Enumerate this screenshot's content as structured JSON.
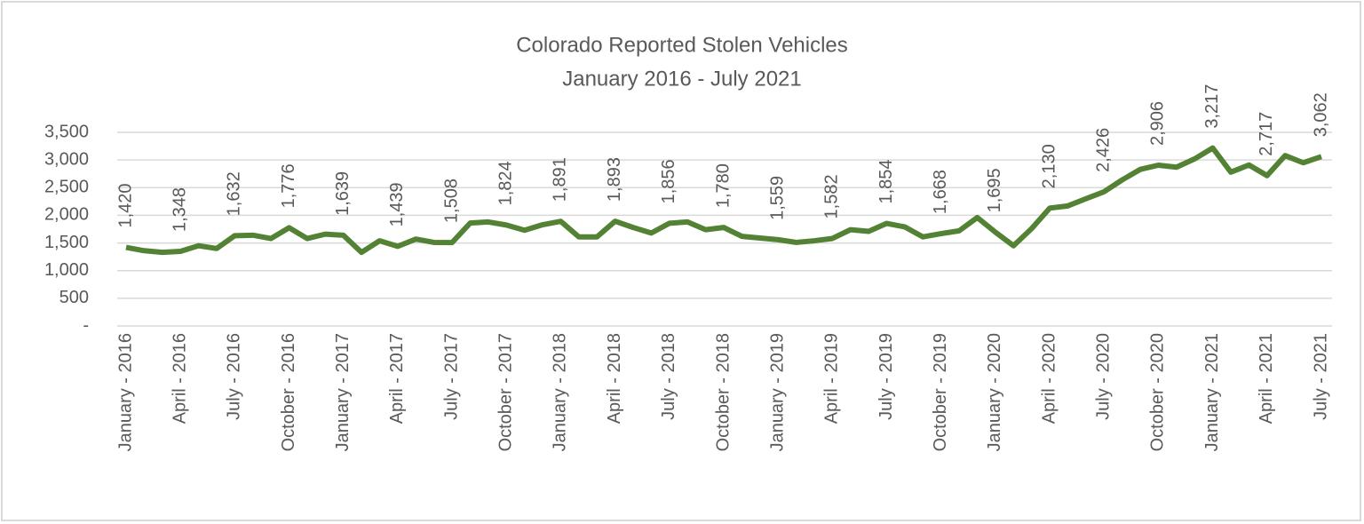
{
  "chart_data": {
    "type": "line",
    "title": "Colorado Reported Stolen Vehicles",
    "subtitle": "January 2016 - July 2021",
    "categories": [
      "January - 2016",
      null,
      null,
      "April - 2016",
      null,
      null,
      "July - 2016",
      null,
      null,
      "October - 2016",
      null,
      null,
      "January - 2017",
      null,
      null,
      "April - 2017",
      null,
      null,
      "July - 2017",
      null,
      null,
      "October - 2017",
      null,
      null,
      "January - 2018",
      null,
      null,
      "April - 2018",
      null,
      null,
      "July - 2018",
      null,
      null,
      "October - 2018",
      null,
      null,
      "January - 2019",
      null,
      null,
      "April - 2019",
      null,
      null,
      "July - 2019",
      null,
      null,
      "October - 2019",
      null,
      null,
      "January - 2020",
      null,
      null,
      "April - 2020",
      null,
      null,
      "July - 2020",
      null,
      null,
      "October - 2020",
      null,
      null,
      "January - 2021",
      null,
      null,
      "April - 2021",
      null,
      null,
      "July - 2021"
    ],
    "series": [
      {
        "color": "#548235",
        "values": [
          1420,
          1360,
          1330,
          1348,
          1450,
          1400,
          1632,
          1640,
          1580,
          1776,
          1580,
          1660,
          1639,
          1330,
          1540,
          1439,
          1570,
          1510,
          1508,
          1860,
          1880,
          1824,
          1730,
          1830,
          1891,
          1610,
          1610,
          1893,
          1780,
          1680,
          1856,
          1880,
          1740,
          1780,
          1620,
          1590,
          1559,
          1510,
          1540,
          1582,
          1740,
          1710,
          1854,
          1790,
          1610,
          1668,
          1720,
          1960,
          1695,
          1450,
          1760,
          2130,
          2170,
          2300,
          2426,
          2640,
          2830,
          2906,
          2870,
          3020,
          3217,
          2780,
          2910,
          2717,
          3080,
          2950,
          3062
        ],
        "value_labels": [
          "1,420",
          null,
          null,
          "1,348",
          null,
          null,
          "1,632",
          null,
          null,
          "1,776",
          null,
          null,
          "1,639",
          null,
          null,
          "1,439",
          null,
          null,
          "1,508",
          null,
          null,
          "1,824",
          null,
          null,
          "1,891",
          null,
          null,
          "1,893",
          null,
          null,
          "1,856",
          null,
          null,
          "1,780",
          null,
          null,
          "1,559",
          null,
          null,
          "1,582",
          null,
          null,
          "1,854",
          null,
          null,
          "1,668",
          null,
          null,
          "1,695",
          null,
          null,
          "2,130",
          null,
          null,
          "2,426",
          null,
          null,
          "2,906",
          null,
          null,
          "3,217",
          null,
          null,
          "2,717",
          null,
          null,
          "3,062"
        ]
      }
    ],
    "ylim": [
      0,
      3500
    ],
    "yticks": [
      {
        "value": 0,
        "label": "-"
      },
      {
        "value": 500,
        "label": "500"
      },
      {
        "value": 1000,
        "label": "1,000"
      },
      {
        "value": 1500,
        "label": "1,500"
      },
      {
        "value": 2000,
        "label": "2,000"
      },
      {
        "value": 2500,
        "label": "2,500"
      },
      {
        "value": 3000,
        "label": "3,000"
      },
      {
        "value": 3500,
        "label": "3,500"
      }
    ],
    "grid": true
  }
}
